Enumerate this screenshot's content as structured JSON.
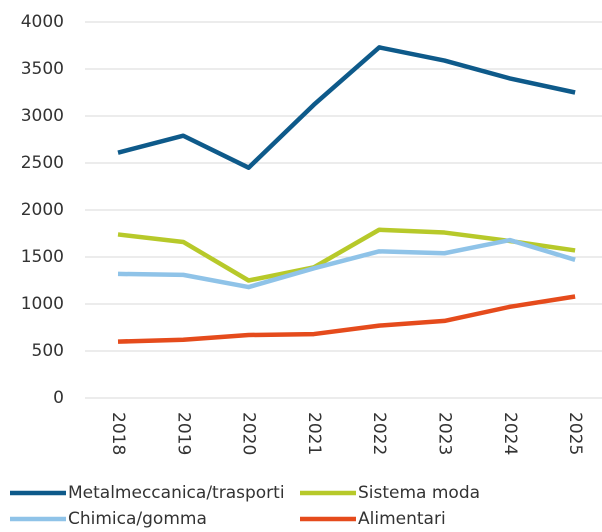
{
  "chart_data": {
    "type": "line",
    "categories": [
      "2018",
      "2019",
      "2020",
      "2021",
      "2022",
      "2023",
      "2024",
      "2025"
    ],
    "series": [
      {
        "name": "Metalmeccanica/trasporti",
        "color": "#0e5a8a",
        "values": [
          2610,
          2790,
          2450,
          3120,
          3730,
          3590,
          3400,
          3250
        ]
      },
      {
        "name": "Sistema moda",
        "color": "#b7c92a",
        "values": [
          1740,
          1660,
          1250,
          1390,
          1790,
          1760,
          1670,
          1570
        ]
      },
      {
        "name": "Chimica/gomma",
        "color": "#8fc3e8",
        "values": [
          1320,
          1310,
          1180,
          1380,
          1560,
          1540,
          1680,
          1470
        ]
      },
      {
        "name": "Alimentari",
        "color": "#e54b1c",
        "values": [
          600,
          620,
          670,
          680,
          770,
          820,
          970,
          1080
        ]
      }
    ],
    "ylim": [
      0,
      4000
    ],
    "yticks": [
      0,
      500,
      1000,
      1500,
      2000,
      2500,
      3000,
      3500,
      4000
    ],
    "grid": true,
    "legend": "bottom"
  }
}
